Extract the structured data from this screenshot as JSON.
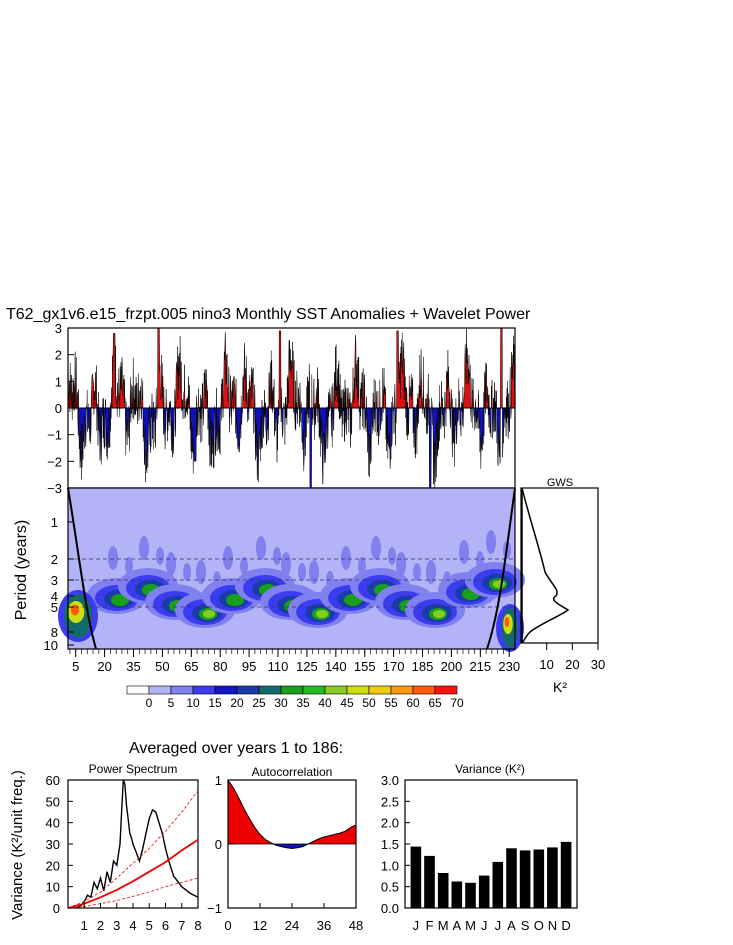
{
  "title": "T62_gx1v6.e15_frzpt.005 nino3 Monthly SST Anomalies + Wavelet Power",
  "colors": {
    "positive": "#dd1111",
    "negative": "#1111bb",
    "wavelet_bg": "#b3b3f7",
    "bar": "#000000",
    "fill_red": "#ee0000"
  },
  "chart_data": [
    {
      "id": "sst_series",
      "type": "area",
      "title": "T62_gx1v6.e15_frzpt.005 nino3 Monthly SST Anomalies + Wavelet Power",
      "ylim": [
        -3,
        3
      ],
      "yticks": [
        "3",
        "2",
        "1",
        "0",
        "−1",
        "−2",
        "−3"
      ],
      "xlim": [
        1,
        233
      ],
      "peaks": [
        {
          "x": 25,
          "y": 2.8
        },
        {
          "x": 48,
          "y": 3.0
        },
        {
          "x": 67,
          "y": -2.0
        },
        {
          "x": 111,
          "y": 2.9
        },
        {
          "x": 127,
          "y": -3.0
        },
        {
          "x": 172,
          "y": 2.9
        },
        {
          "x": 189,
          "y": -3.0
        },
        {
          "x": 226,
          "y": 3.0
        }
      ]
    },
    {
      "id": "wavelet_power",
      "type": "heatmap",
      "ylabel": "Period (years)",
      "yticks": [
        "1",
        "2",
        "3",
        "4",
        "5",
        "8",
        "10"
      ],
      "xticks": [
        "5",
        "20",
        "35",
        "50",
        "65",
        "80",
        "95",
        "110",
        "125",
        "140",
        "155",
        "170",
        "185",
        "200",
        "215",
        "230"
      ],
      "significant_periods": [
        2,
        3,
        5
      ],
      "colorbar": {
        "labels": [
          "0",
          "5",
          "10",
          "15",
          "20",
          "25",
          "30",
          "35",
          "40",
          "45",
          "50",
          "55",
          "60",
          "65",
          "70"
        ],
        "colors": [
          "#ffffff",
          "#b3b3f7",
          "#8080ee",
          "#3b3bf0",
          "#1515c8",
          "#1a3ca8",
          "#136a6a",
          "#18a018",
          "#22bb22",
          "#88cc22",
          "#cce010",
          "#f0cc10",
          "#ff9a10",
          "#ff5a10",
          "#ff1010"
        ]
      }
    },
    {
      "id": "gws",
      "type": "line",
      "title": "GWS",
      "xlabel": "K²",
      "xticks": [
        "10",
        "20",
        "30"
      ],
      "xlim": [
        0,
        30
      ]
    },
    {
      "id": "power_spectrum",
      "type": "line",
      "title": "Power Spectrum",
      "ylabel": "Variance (K²/unit freq.)",
      "xlim": [
        0,
        8
      ],
      "ylim": [
        0,
        60
      ],
      "xticks": [
        "1",
        "2",
        "3",
        "4",
        "5",
        "6",
        "7",
        "8"
      ],
      "yticks": [
        "0",
        "10",
        "20",
        "30",
        "40",
        "50",
        "60"
      ],
      "series": [
        {
          "x": [
            0.5,
            0.8,
            1.0,
            1.2,
            1.4,
            1.6,
            1.8,
            2.0,
            2.2,
            2.4,
            2.6,
            2.8,
            3.0,
            3.2,
            3.3,
            3.4,
            3.5,
            3.6,
            3.7,
            3.8,
            3.9,
            4.0,
            4.2,
            4.4,
            4.6,
            4.8,
            5.0,
            5.2,
            5.4,
            5.6,
            5.8,
            6.0,
            6.2,
            6.5,
            7.0,
            7.5,
            8.0
          ],
          "y": [
            0,
            1,
            3,
            6,
            5,
            12,
            9,
            14,
            8,
            17,
            12,
            22,
            20,
            30,
            45,
            60,
            58,
            48,
            42,
            35,
            33,
            30,
            26,
            22,
            28,
            35,
            42,
            46,
            45,
            40,
            35,
            28,
            22,
            15,
            10,
            7,
            5
          ]
        },
        {
          "x": [
            0,
            1,
            2,
            3,
            4,
            5,
            6,
            7,
            8
          ],
          "y": [
            0,
            2,
            5,
            8.5,
            12.5,
            17,
            21.5,
            27,
            32
          ]
        },
        {
          "x": [
            0,
            1,
            2,
            3,
            4,
            5,
            6,
            7,
            8
          ],
          "y": [
            0,
            3,
            7.5,
            14,
            21,
            28,
            36,
            45,
            55
          ]
        },
        {
          "x": [
            0,
            1,
            2,
            3,
            4,
            5,
            6,
            7,
            8
          ],
          "y": [
            0,
            0.8,
            2,
            3.5,
            5.5,
            7.5,
            10,
            12,
            14
          ]
        }
      ]
    },
    {
      "id": "autocorrelation",
      "type": "area",
      "title": "Autocorrelation",
      "xlabel": "",
      "xlim": [
        0,
        48
      ],
      "ylim": [
        -1,
        1
      ],
      "xticks": [
        "0",
        "12",
        "24",
        "36",
        "48"
      ],
      "yticks": [
        "1",
        "0",
        "−1"
      ],
      "x": [
        0,
        2,
        4,
        6,
        8,
        10,
        12,
        14,
        16,
        18,
        20,
        22,
        24,
        26,
        28,
        30,
        32,
        34,
        36,
        38,
        40,
        42,
        44,
        46,
        48
      ],
      "y": [
        1.0,
        0.88,
        0.72,
        0.55,
        0.4,
        0.26,
        0.15,
        0.07,
        0.02,
        -0.02,
        -0.04,
        -0.06,
        -0.07,
        -0.06,
        -0.04,
        0.0,
        0.04,
        0.08,
        0.11,
        0.13,
        0.15,
        0.17,
        0.2,
        0.26,
        0.3
      ]
    },
    {
      "id": "monthly_variance",
      "type": "bar",
      "title": "Variance (K²)",
      "categories": [
        "J",
        "F",
        "M",
        "A",
        "M",
        "J",
        "J",
        "A",
        "S",
        "O",
        "N",
        "D"
      ],
      "values": [
        1.44,
        1.22,
        0.82,
        0.62,
        0.59,
        0.76,
        1.08,
        1.4,
        1.35,
        1.37,
        1.42,
        1.55
      ],
      "ylim": [
        0,
        3
      ],
      "yticks": [
        "0.0",
        "0.5",
        "1.0",
        "1.5",
        "2.0",
        "2.5",
        "3.0"
      ]
    }
  ],
  "averaged_title": "Averaged over years 1 to 186:"
}
